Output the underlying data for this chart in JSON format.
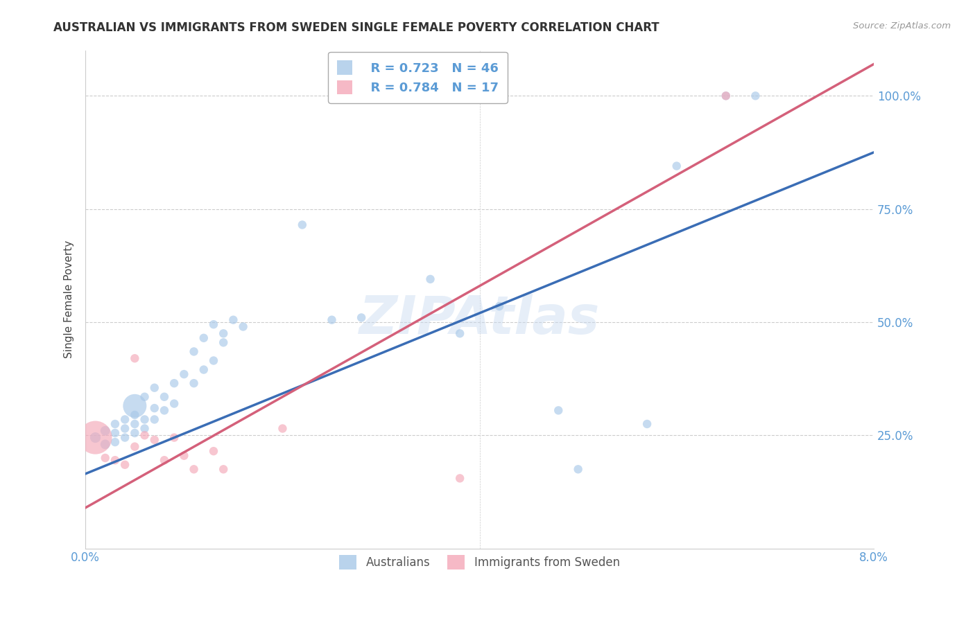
{
  "title": "AUSTRALIAN VS IMMIGRANTS FROM SWEDEN SINGLE FEMALE POVERTY CORRELATION CHART",
  "source": "Source: ZipAtlas.com",
  "ylabel": "Single Female Poverty",
  "xlim": [
    0.0,
    0.08
  ],
  "ylim": [
    0.0,
    1.1
  ],
  "xticks": [
    0.0,
    0.01,
    0.02,
    0.03,
    0.04,
    0.05,
    0.06,
    0.07,
    0.08
  ],
  "xticklabels": [
    "0.0%",
    "",
    "",
    "",
    "",
    "",
    "",
    "",
    "8.0%"
  ],
  "ytick_positions": [
    0.25,
    0.5,
    0.75,
    1.0
  ],
  "ytick_labels": [
    "25.0%",
    "50.0%",
    "75.0%",
    "100.0%"
  ],
  "watermark": "ZIPAtlas",
  "legend_r1": "R = 0.723",
  "legend_n1": "N = 46",
  "legend_r2": "R = 0.784",
  "legend_n2": "N = 17",
  "color_blue": "#a8c8e8",
  "color_pink": "#f4a8b8",
  "line_color_blue": "#3a6db5",
  "line_color_pink": "#d4607a",
  "aus_x": [
    0.001,
    0.002,
    0.002,
    0.003,
    0.003,
    0.003,
    0.004,
    0.004,
    0.004,
    0.005,
    0.005,
    0.005,
    0.005,
    0.006,
    0.006,
    0.006,
    0.007,
    0.007,
    0.007,
    0.008,
    0.008,
    0.009,
    0.009,
    0.01,
    0.011,
    0.011,
    0.012,
    0.012,
    0.013,
    0.013,
    0.014,
    0.014,
    0.015,
    0.016,
    0.022,
    0.025,
    0.028,
    0.035,
    0.038,
    0.042,
    0.048,
    0.05,
    0.057,
    0.06,
    0.065,
    0.068
  ],
  "aus_y": [
    0.245,
    0.23,
    0.26,
    0.235,
    0.255,
    0.275,
    0.245,
    0.265,
    0.285,
    0.255,
    0.275,
    0.295,
    0.315,
    0.265,
    0.285,
    0.335,
    0.285,
    0.31,
    0.355,
    0.305,
    0.335,
    0.32,
    0.365,
    0.385,
    0.365,
    0.435,
    0.395,
    0.465,
    0.415,
    0.495,
    0.455,
    0.475,
    0.505,
    0.49,
    0.715,
    0.505,
    0.51,
    0.595,
    0.475,
    0.535,
    0.305,
    0.175,
    0.275,
    0.845,
    1.0,
    1.0
  ],
  "aus_sizes": [
    120,
    100,
    100,
    80,
    80,
    80,
    80,
    80,
    80,
    80,
    80,
    80,
    600,
    80,
    80,
    80,
    80,
    80,
    80,
    80,
    80,
    80,
    80,
    80,
    80,
    80,
    80,
    80,
    80,
    80,
    80,
    80,
    80,
    80,
    80,
    80,
    80,
    80,
    80,
    80,
    80,
    80,
    80,
    80,
    80,
    80
  ],
  "swe_x": [
    0.001,
    0.002,
    0.003,
    0.004,
    0.005,
    0.005,
    0.006,
    0.007,
    0.008,
    0.009,
    0.01,
    0.011,
    0.013,
    0.014,
    0.02,
    0.038,
    0.065
  ],
  "swe_y": [
    0.245,
    0.2,
    0.195,
    0.185,
    0.225,
    0.42,
    0.25,
    0.24,
    0.195,
    0.245,
    0.205,
    0.175,
    0.215,
    0.175,
    0.265,
    0.155,
    1.0
  ],
  "swe_sizes": [
    1200,
    80,
    80,
    80,
    80,
    80,
    80,
    80,
    80,
    80,
    80,
    80,
    80,
    80,
    80,
    80,
    80
  ],
  "aus_line_x": [
    0.0,
    0.08
  ],
  "aus_line_y": [
    0.165,
    0.875
  ],
  "swe_line_x": [
    0.0,
    0.08
  ],
  "swe_line_y": [
    0.09,
    1.07
  ]
}
